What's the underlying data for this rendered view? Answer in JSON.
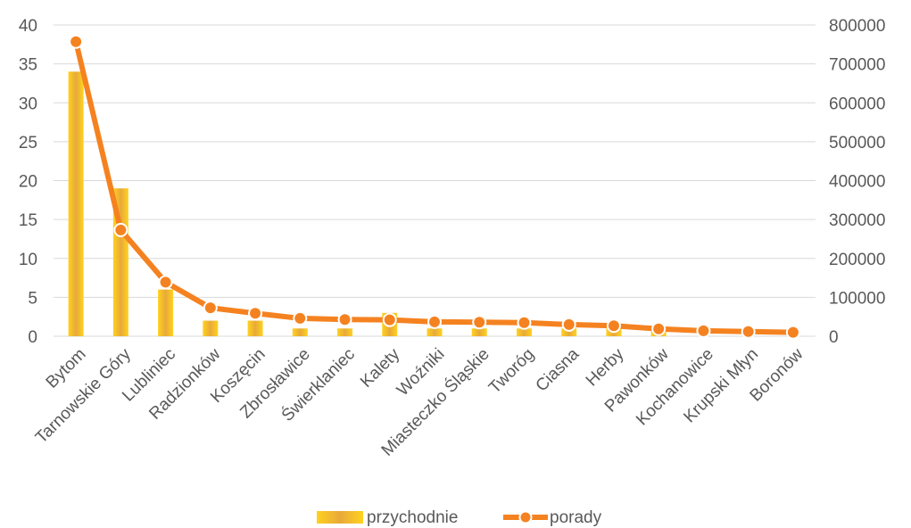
{
  "chart_data": {
    "type": "bar",
    "title": "",
    "categories": [
      "Bytom",
      "Tarnowskie Góry",
      "Lubliniec",
      "Radzionków",
      "Koszęcin",
      "Zbrosławice",
      "Świerklaniec",
      "Kalety",
      "Woźniki",
      "Miasteczko Śląskie",
      "Tworóg",
      "Ciasna",
      "Herby",
      "Pawonków",
      "Kochanowice",
      "Krupski Młyn",
      "Boronów"
    ],
    "series": [
      {
        "name": "przychodnie",
        "type": "bar",
        "axis": "left",
        "color": "#F5C518",
        "values": [
          34,
          19,
          6,
          2,
          2,
          1,
          1,
          3,
          1,
          1,
          1,
          1,
          1,
          1,
          0,
          0,
          0
        ]
      },
      {
        "name": "porady",
        "type": "line",
        "axis": "right",
        "color": "#F58220",
        "values": [
          757000,
          273000,
          139000,
          73000,
          59000,
          46000,
          43000,
          42000,
          37000,
          36000,
          35000,
          30000,
          27000,
          19000,
          14000,
          12000,
          10000
        ]
      }
    ],
    "left_axis": {
      "ylim": [
        0,
        40
      ],
      "ticks": [
        "0",
        "5",
        "10",
        "15",
        "20",
        "25",
        "30",
        "35",
        "40"
      ]
    },
    "right_axis": {
      "ylim": [
        0,
        800000
      ],
      "ticks": [
        "0",
        "100000",
        "200000",
        "300000",
        "400000",
        "500000",
        "600000",
        "700000",
        "800000"
      ]
    },
    "grid": true,
    "legend_position": "bottom"
  }
}
